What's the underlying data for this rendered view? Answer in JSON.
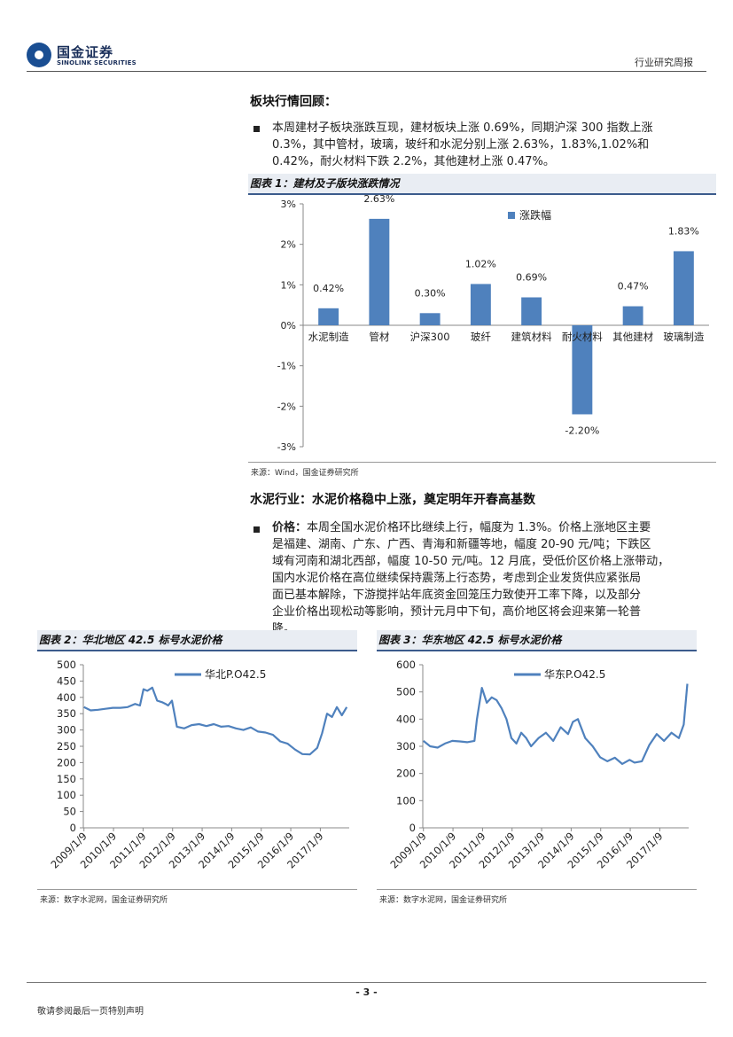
{
  "header": {
    "logo_cn": "国金证券",
    "logo_en": "SINOLINK SECURITIES",
    "report_type": "行业研究周报"
  },
  "section1": {
    "title": "板块行情回顾：",
    "bullet_lines": [
      "本周建材子板块涨跌互现，建材板块上涨 0.69%，同期沪深 300 指数上涨",
      "0.3%，其中管材，玻璃，玻纤和水泥分别上涨 2.63%，1.83%,1.02%和",
      "0.42%，耐火材料下跌 2.2%，其他建材上涨 0.47%。"
    ]
  },
  "figure1": {
    "title": "图表 1：建材及子版块涨跌情况",
    "source": "来源：Wind，国金证券研究所"
  },
  "section2": {
    "title": "水泥行业：水泥价格稳中上涨，奠定明年开春高基数",
    "bullet_label": "价格：",
    "bullet_lines": [
      "本周全国水泥价格环比继续上行，幅度为 1.3%。价格上涨地区主要",
      "是福建、湖南、广东、广西、青海和新疆等地，幅度 20-90 元/吨；下跌区",
      "域有河南和湖北西部，幅度 10-50 元/吨。12 月底，受低价区价格上涨带动，",
      "国内水泥价格在高位继续保持震荡上行态势，考虑到企业发货供应紧张局",
      "面已基本解除，下游搅拌站年底资金回笼压力致使开工率下降，以及部分",
      "企业价格出现松动等影响，预计元月中下旬，高价地区将会迎来第一轮普",
      "降。"
    ]
  },
  "figure2": {
    "title": "图表 2：华北地区 42.5 标号水泥价格",
    "source": "来源：数字水泥网，国金证券研究所"
  },
  "figure3": {
    "title": "图表 3：华东地区 42.5 标号水泥价格",
    "source": "来源：数字水泥网，国金证券研究所"
  },
  "footer": {
    "page_number": "- 3 -",
    "disclaimer": "敬请参阅最后一页特别声明"
  },
  "colors": {
    "bar": "#4f81bd",
    "line": "#4f81bd",
    "accent": "#3b5b8c"
  },
  "chart_data": [
    {
      "type": "bar",
      "categories": [
        "水泥制造",
        "管材",
        "沪深300",
        "玻纤",
        "建筑材料",
        "耐火材料",
        "其他建材",
        "玻璃制造"
      ],
      "series": [
        {
          "name": "涨跌幅",
          "values": [
            0.42,
            2.63,
            0.3,
            1.02,
            0.69,
            -2.2,
            0.47,
            1.83
          ]
        }
      ],
      "data_labels": [
        "0.42%",
        "2.63%",
        "0.30%",
        "1.02%",
        "0.69%",
        "-2.20%",
        "0.47%",
        "1.83%"
      ],
      "yticks": [
        "3%",
        "2%",
        "1%",
        "0%",
        "-1%",
        "-2%",
        "-3%"
      ],
      "ylim": [
        -3,
        3
      ],
      "legend": "top-right"
    },
    {
      "type": "line",
      "series": [
        {
          "name": "华北P.O42.5",
          "x": [
            "2009/1/9",
            "2009/4/1",
            "2009/7/1",
            "2009/10/1",
            "2010/1/1",
            "2010/4/1",
            "2010/7/1",
            "2010/10/1",
            "2010/12/1",
            "2011/1/15",
            "2011/3/1",
            "2011/5/1",
            "2011/7/1",
            "2011/9/1",
            "2011/10/15",
            "2011/11/15",
            "2012/1/1",
            "2012/3/1",
            "2012/6/1",
            "2012/9/1",
            "2012/12/1",
            "2013/3/1",
            "2013/6/1",
            "2013/9/1",
            "2013/12/1",
            "2014/3/1",
            "2014/6/1",
            "2014/9/1",
            "2014/12/1",
            "2015/3/1",
            "2015/6/1",
            "2015/9/1",
            "2015/12/1",
            "2016/3/1",
            "2016/6/1",
            "2016/9/1",
            "2016/12/1",
            "2017/2/1",
            "2017/4/1",
            "2017/6/1",
            "2017/8/1",
            "2017/10/1",
            "2017/12/1"
          ],
          "values": [
            370,
            360,
            362,
            365,
            368,
            368,
            370,
            380,
            375,
            425,
            420,
            430,
            390,
            385,
            380,
            375,
            390,
            310,
            305,
            315,
            318,
            312,
            318,
            310,
            312,
            305,
            300,
            308,
            295,
            292,
            285,
            265,
            258,
            240,
            226,
            225,
            245,
            290,
            350,
            340,
            370,
            345,
            370
          ]
        }
      ],
      "yticks": [
        0,
        50,
        100,
        150,
        200,
        250,
        300,
        350,
        400,
        450,
        500
      ],
      "xticks": [
        "2009/1/9",
        "2010/1/9",
        "2011/1/9",
        "2012/1/9",
        "2013/1/9",
        "2014/1/9",
        "2015/1/9",
        "2016/1/9",
        "2017/1/9"
      ],
      "ylim": [
        0,
        500
      ],
      "legend": "top-left"
    },
    {
      "type": "line",
      "series": [
        {
          "name": "华东P.O42.5",
          "x": [
            "2009/1/9",
            "2009/4/1",
            "2009/7/1",
            "2009/10/1",
            "2010/1/1",
            "2010/4/1",
            "2010/7/1",
            "2010/10/1",
            "2010/11/1",
            "2011/1/1",
            "2011/3/1",
            "2011/5/1",
            "2011/7/1",
            "2011/9/1",
            "2011/11/1",
            "2012/1/1",
            "2012/3/1",
            "2012/5/1",
            "2012/7/1",
            "2012/9/1",
            "2012/12/1",
            "2013/3/1",
            "2013/6/1",
            "2013/9/1",
            "2013/12/1",
            "2014/2/1",
            "2014/4/1",
            "2014/7/1",
            "2014/10/1",
            "2015/1/1",
            "2015/4/1",
            "2015/7/1",
            "2015/10/1",
            "2016/1/1",
            "2016/3/1",
            "2016/6/1",
            "2016/9/1",
            "2016/12/1",
            "2017/3/1",
            "2017/6/1",
            "2017/9/1",
            "2017/11/1",
            "2017/12/15"
          ],
          "values": [
            320,
            300,
            295,
            310,
            320,
            318,
            315,
            320,
            400,
            515,
            460,
            480,
            470,
            440,
            400,
            330,
            310,
            350,
            330,
            300,
            330,
            350,
            320,
            370,
            345,
            390,
            400,
            330,
            300,
            260,
            245,
            258,
            235,
            250,
            240,
            245,
            305,
            345,
            320,
            350,
            330,
            380,
            530
          ]
        }
      ],
      "yticks": [
        0,
        100,
        200,
        300,
        400,
        500,
        600
      ],
      "xticks": [
        "2009/1/9",
        "2010/1/9",
        "2011/1/9",
        "2012/1/9",
        "2013/1/9",
        "2014/1/9",
        "2015/1/9",
        "2016/1/9",
        "2017/1/9"
      ],
      "ylim": [
        0,
        600
      ],
      "legend": "top-left"
    }
  ]
}
